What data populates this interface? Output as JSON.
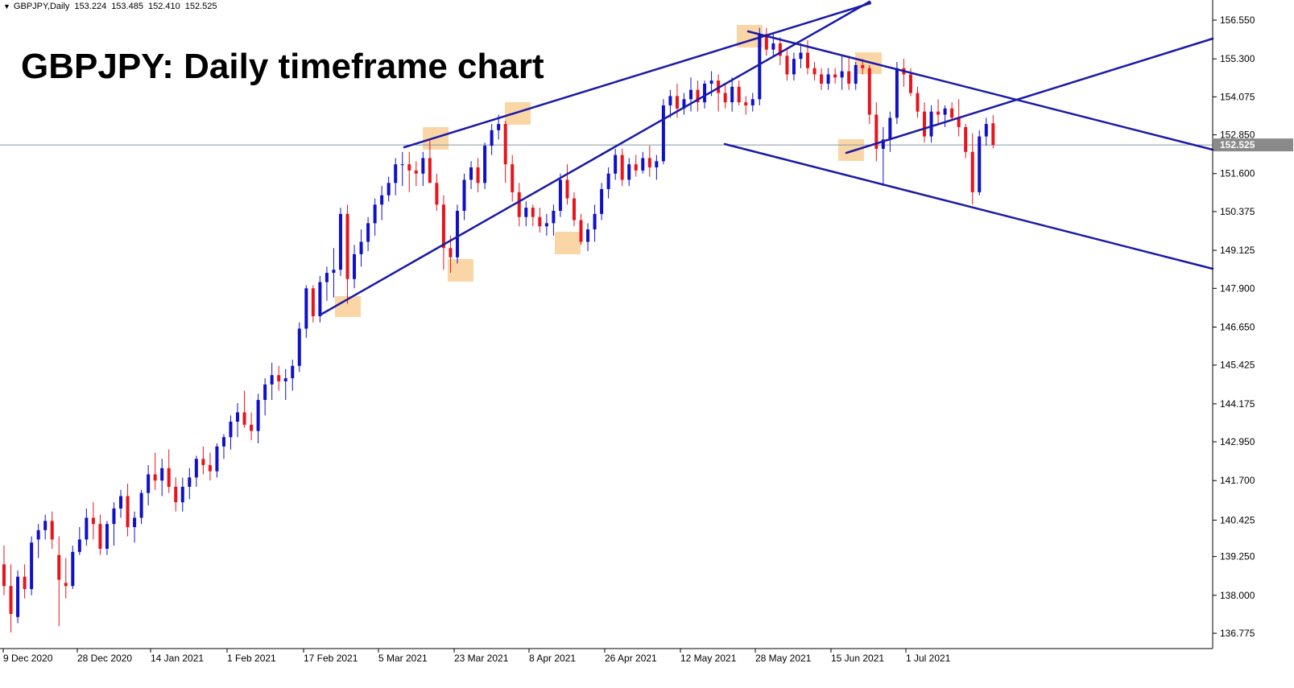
{
  "header": {
    "symbol": "GBPJPY,Daily",
    "open": "153.224",
    "high": "153.485",
    "low": "152.410",
    "close": "152.525"
  },
  "overlay_title": "GBPJPY: Daily timeframe chart",
  "colors": {
    "bull": "#1010c8",
    "bear": "#e8141c",
    "trendline": "#1a1aa8",
    "highlight": "#f9cf97",
    "price_line": "#8898a4",
    "price_tag_bg": "#8a8a8a"
  },
  "chart_data": {
    "type": "candlestick",
    "title": "GBPJPY: Daily timeframe chart",
    "x_tick_labels": [
      "9 Dec 2020",
      "28 Dec 2020",
      "14 Jan 2021",
      "1 Feb 2021",
      "17 Feb 2021",
      "5 Mar 2021",
      "23 Mar 2021",
      "8 Apr 2021",
      "26 Apr 2021",
      "12 May 2021",
      "28 May 2021",
      "15 Jun 2021",
      "1 Jul 2021"
    ],
    "y_tick_labels": [
      "156.550",
      "155.300",
      "154.075",
      "152.850",
      "151.600",
      "150.375",
      "149.125",
      "147.900",
      "146.650",
      "145.425",
      "144.175",
      "142.950",
      "141.700",
      "140.425",
      "139.250",
      "138.000",
      "136.775"
    ],
    "ylim": [
      136.5,
      156.75
    ],
    "current_price": "152.525",
    "candles": [
      [
        139.0,
        139.6,
        138.0,
        138.3
      ],
      [
        138.3,
        139.0,
        136.8,
        137.4
      ],
      [
        137.3,
        138.8,
        137.1,
        138.6
      ],
      [
        138.6,
        139.0,
        137.9,
        138.2
      ],
      [
        138.2,
        139.9,
        138.0,
        139.7
      ],
      [
        139.8,
        140.3,
        139.2,
        140.1
      ],
      [
        140.1,
        140.6,
        139.8,
        140.4
      ],
      [
        140.4,
        140.7,
        139.5,
        139.8
      ],
      [
        139.3,
        139.9,
        137.0,
        138.5
      ],
      [
        138.4,
        139.2,
        137.9,
        138.3
      ],
      [
        138.3,
        139.6,
        138.2,
        139.4
      ],
      [
        139.4,
        140.2,
        139.3,
        139.8
      ],
      [
        139.8,
        140.8,
        139.6,
        140.5
      ],
      [
        140.5,
        141.0,
        139.8,
        140.3
      ],
      [
        140.3,
        140.6,
        139.3,
        139.5
      ],
      [
        139.5,
        140.4,
        139.3,
        140.3
      ],
      [
        140.3,
        141.0,
        139.6,
        140.8
      ],
      [
        140.8,
        141.4,
        140.5,
        141.2
      ],
      [
        141.2,
        141.6,
        139.9,
        140.2
      ],
      [
        140.2,
        140.7,
        139.7,
        140.5
      ],
      [
        140.5,
        141.4,
        140.3,
        141.3
      ],
      [
        141.3,
        142.2,
        140.9,
        141.9
      ],
      [
        141.9,
        142.6,
        141.4,
        141.7
      ],
      [
        141.7,
        142.4,
        141.2,
        142.1
      ],
      [
        142.1,
        142.7,
        141.3,
        141.5
      ],
      [
        141.5,
        141.8,
        140.7,
        141.0
      ],
      [
        141.0,
        141.8,
        140.7,
        141.5
      ],
      [
        141.5,
        142.1,
        141.1,
        141.8
      ],
      [
        141.8,
        142.5,
        141.5,
        142.4
      ],
      [
        142.4,
        142.8,
        141.9,
        142.2
      ],
      [
        142.2,
        142.6,
        141.7,
        142.0
      ],
      [
        142.0,
        142.9,
        141.8,
        142.8
      ],
      [
        142.8,
        143.2,
        142.4,
        143.1
      ],
      [
        143.1,
        143.8,
        142.7,
        143.6
      ],
      [
        143.6,
        144.2,
        143.1,
        143.9
      ],
      [
        143.9,
        144.6,
        143.4,
        143.5
      ],
      [
        143.5,
        143.9,
        143.0,
        143.3
      ],
      [
        143.3,
        144.5,
        142.9,
        144.3
      ],
      [
        144.3,
        145.0,
        143.8,
        144.8
      ],
      [
        144.8,
        145.5,
        144.3,
        145.1
      ],
      [
        145.1,
        145.4,
        144.6,
        144.9
      ],
      [
        144.9,
        145.3,
        144.3,
        145.0
      ],
      [
        145.0,
        145.6,
        144.6,
        145.4
      ],
      [
        145.4,
        146.8,
        145.2,
        146.6
      ],
      [
        146.6,
        148.0,
        146.3,
        147.9
      ],
      [
        147.9,
        148.0,
        146.8,
        147.0
      ],
      [
        147.0,
        148.3,
        146.8,
        148.1
      ],
      [
        148.1,
        148.6,
        147.5,
        148.4
      ],
      [
        148.4,
        149.2,
        147.6,
        148.5
      ],
      [
        148.5,
        150.5,
        148.3,
        150.3
      ],
      [
        150.3,
        150.6,
        147.4,
        148.2
      ],
      [
        148.2,
        149.3,
        147.9,
        149.0
      ],
      [
        149.0,
        149.8,
        148.6,
        149.4
      ],
      [
        149.4,
        150.2,
        149.1,
        150.0
      ],
      [
        150.0,
        150.8,
        149.6,
        150.6
      ],
      [
        150.6,
        151.2,
        150.1,
        150.9
      ],
      [
        150.9,
        151.5,
        150.7,
        151.3
      ],
      [
        151.3,
        152.1,
        150.9,
        151.9
      ],
      [
        151.9,
        152.3,
        151.2,
        151.9
      ],
      [
        151.9,
        152.3,
        151.0,
        151.7
      ],
      [
        151.7,
        152.0,
        151.2,
        151.6
      ],
      [
        151.6,
        152.3,
        151.2,
        152.1
      ],
      [
        152.1,
        152.7,
        151.5,
        151.3
      ],
      [
        151.3,
        151.6,
        150.4,
        150.6
      ],
      [
        150.6,
        150.9,
        148.5,
        149.2
      ],
      [
        149.2,
        149.6,
        148.4,
        148.9
      ],
      [
        148.9,
        150.6,
        148.7,
        150.4
      ],
      [
        150.4,
        151.6,
        150.1,
        151.4
      ],
      [
        151.4,
        152.0,
        151.1,
        151.8
      ],
      [
        151.8,
        152.1,
        151.0,
        151.3
      ],
      [
        151.3,
        152.6,
        151.1,
        152.5
      ],
      [
        152.5,
        153.2,
        152.2,
        153.0
      ],
      [
        153.0,
        153.5,
        152.7,
        153.2
      ],
      [
        153.2,
        153.3,
        151.3,
        151.9
      ],
      [
        151.9,
        152.2,
        150.7,
        151.0
      ],
      [
        151.0,
        151.3,
        149.9,
        150.2
      ],
      [
        150.2,
        150.7,
        149.9,
        150.5
      ],
      [
        150.5,
        150.6,
        149.9,
        150.2
      ],
      [
        150.2,
        150.5,
        149.7,
        149.9
      ],
      [
        149.9,
        150.3,
        149.6,
        150.0
      ],
      [
        150.0,
        150.6,
        149.6,
        150.4
      ],
      [
        150.4,
        151.6,
        150.2,
        151.4
      ],
      [
        151.4,
        151.9,
        150.6,
        150.8
      ],
      [
        150.8,
        151.0,
        149.9,
        150.1
      ],
      [
        150.1,
        150.3,
        149.3,
        149.4
      ],
      [
        149.4,
        150.0,
        149.1,
        149.8
      ],
      [
        149.8,
        150.6,
        149.4,
        150.3
      ],
      [
        150.3,
        151.3,
        150.1,
        151.1
      ],
      [
        151.1,
        151.8,
        150.8,
        151.6
      ],
      [
        151.6,
        152.4,
        151.4,
        152.2
      ],
      [
        152.2,
        152.4,
        151.2,
        151.4
      ],
      [
        151.4,
        152.1,
        151.2,
        151.9
      ],
      [
        151.9,
        152.2,
        151.5,
        151.7
      ],
      [
        151.7,
        152.3,
        151.6,
        152.1
      ],
      [
        152.1,
        152.5,
        151.5,
        151.8
      ],
      [
        151.8,
        152.2,
        151.4,
        152.0
      ],
      [
        152.0,
        154.0,
        151.9,
        153.8
      ],
      [
        153.8,
        154.3,
        153.4,
        154.1
      ],
      [
        154.1,
        154.5,
        153.4,
        153.7
      ],
      [
        153.7,
        154.2,
        153.5,
        154.0
      ],
      [
        154.0,
        154.7,
        153.6,
        154.3
      ],
      [
        154.3,
        154.6,
        153.6,
        153.9
      ],
      [
        153.9,
        154.6,
        153.7,
        154.5
      ],
      [
        154.5,
        154.9,
        154.1,
        154.6
      ],
      [
        154.6,
        154.8,
        153.6,
        154.2
      ],
      [
        154.2,
        154.5,
        153.7,
        153.9
      ],
      [
        153.9,
        154.7,
        153.6,
        154.4
      ],
      [
        154.4,
        154.6,
        153.8,
        153.9
      ],
      [
        153.9,
        154.1,
        153.5,
        153.8
      ],
      [
        153.8,
        154.2,
        153.6,
        154.0
      ],
      [
        154.0,
        156.3,
        153.8,
        156.1
      ],
      [
        156.1,
        156.3,
        155.4,
        155.6
      ],
      [
        155.6,
        156.1,
        155.4,
        155.8
      ],
      [
        155.8,
        156.0,
        155.1,
        155.4
      ],
      [
        155.4,
        155.6,
        154.6,
        154.8
      ],
      [
        154.8,
        155.5,
        154.6,
        155.3
      ],
      [
        155.3,
        155.8,
        155.0,
        155.5
      ],
      [
        155.5,
        155.9,
        154.8,
        155.0
      ],
      [
        155.0,
        155.2,
        154.6,
        154.8
      ],
      [
        154.8,
        155.0,
        154.3,
        154.5
      ],
      [
        154.5,
        155.0,
        154.3,
        154.8
      ],
      [
        154.8,
        155.0,
        154.5,
        154.7
      ],
      [
        154.7,
        155.4,
        154.3,
        154.9
      ],
      [
        154.9,
        155.4,
        154.3,
        154.5
      ],
      [
        154.5,
        155.2,
        154.3,
        155.1
      ],
      [
        155.1,
        155.3,
        154.8,
        155.0
      ],
      [
        155.0,
        155.1,
        153.2,
        153.5
      ],
      [
        153.5,
        153.9,
        152.0,
        152.4
      ],
      [
        152.4,
        153.1,
        151.2,
        152.7
      ],
      [
        152.7,
        153.6,
        152.3,
        153.4
      ],
      [
        153.4,
        155.2,
        153.2,
        155.0
      ],
      [
        155.0,
        155.3,
        154.4,
        154.8
      ],
      [
        154.8,
        155.0,
        154.1,
        154.2
      ],
      [
        154.2,
        154.4,
        153.4,
        153.6
      ],
      [
        153.6,
        153.9,
        152.6,
        152.8
      ],
      [
        152.8,
        153.8,
        152.6,
        153.6
      ],
      [
        153.6,
        154.0,
        153.2,
        153.5
      ],
      [
        153.5,
        153.8,
        153.1,
        153.7
      ],
      [
        153.7,
        153.9,
        153.3,
        153.4
      ],
      [
        153.4,
        154.0,
        152.8,
        153.1
      ],
      [
        153.1,
        153.2,
        152.1,
        152.3
      ],
      [
        152.3,
        152.9,
        150.6,
        151.0
      ],
      [
        151.0,
        153.0,
        150.9,
        152.8
      ],
      [
        152.8,
        153.4,
        152.5,
        153.2
      ],
      [
        153.224,
        153.485,
        152.41,
        152.525
      ]
    ]
  }
}
